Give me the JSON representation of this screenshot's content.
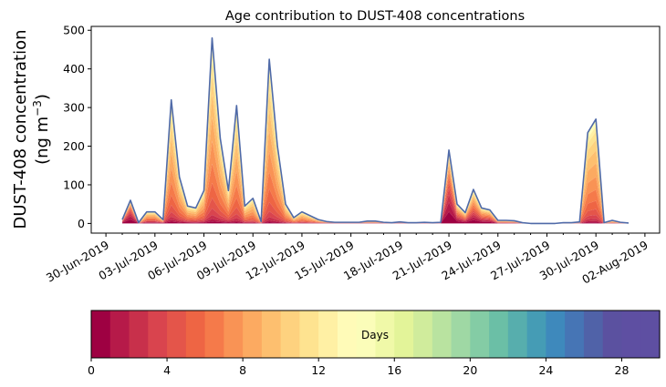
{
  "chart_data": {
    "type": "area",
    "title": "Age contribution to DUST-408 concentrations",
    "ylabel_line1": "DUST-408 concentration",
    "ylabel_line2_prefix": "(ng m",
    "ylabel_line2_sup": "−3",
    "ylabel_line2_suffix": ")",
    "xlabel": "",
    "x_unit": "days since 30-Jun-2019",
    "xlim": [
      -0.9,
      33.9
    ],
    "ylim": [
      -25,
      510
    ],
    "y_ticks": [
      0,
      100,
      200,
      300,
      400,
      500
    ],
    "x_tick_positions": [
      0,
      3,
      6,
      9,
      12,
      15,
      18,
      21,
      24,
      27,
      30,
      33
    ],
    "x_tick_labels": [
      "30-Jun-2019",
      "03-Jul-2019",
      "06-Jul-2019",
      "09-Jul-2019",
      "12-Jul-2019",
      "15-Jul-2019",
      "18-Jul-2019",
      "21-Jul-2019",
      "24-Jul-2019",
      "27-Jul-2019",
      "30-Jul-2019",
      "02-Aug-2019"
    ],
    "time": [
      1,
      1.5,
      2,
      2.5,
      3,
      3.5,
      4,
      4.5,
      5,
      5.5,
      6,
      6.5,
      7,
      7.5,
      8,
      8.5,
      9,
      9.5,
      10,
      10.5,
      11,
      11.5,
      12,
      12.5,
      13,
      13.5,
      14,
      14.5,
      15,
      15.5,
      16,
      16.5,
      17,
      17.5,
      18,
      18.5,
      19,
      19.5,
      20,
      20.5,
      21,
      21.5,
      22,
      22.5,
      23,
      23.5,
      24,
      24.5,
      25,
      25.5,
      26,
      26.5,
      27,
      27.5,
      28,
      28.5,
      29,
      29.5,
      30,
      30.5,
      31,
      31.5,
      32
    ],
    "total": [
      10,
      60,
      2,
      30,
      30,
      10,
      320,
      120,
      45,
      40,
      85,
      480,
      220,
      85,
      305,
      45,
      65,
      5,
      425,
      200,
      50,
      15,
      30,
      20,
      10,
      5,
      3,
      3,
      3,
      3,
      6,
      6,
      3,
      2,
      4,
      2,
      2,
      3,
      2,
      3,
      190,
      50,
      28,
      88,
      40,
      35,
      8,
      8,
      7,
      2,
      0,
      0,
      0,
      0,
      2,
      2,
      4,
      235,
      270,
      2,
      8,
      3,
      1
    ],
    "young_fraction": [
      0.9,
      0.9,
      0.5,
      0.35,
      0.35,
      0.5,
      0.08,
      0.12,
      0.25,
      0.25,
      0.12,
      0.05,
      0.08,
      0.15,
      0.05,
      0.15,
      0.1,
      0.3,
      0.03,
      0.05,
      0.1,
      0.2,
      0.15,
      0.2,
      0.3,
      0.4,
      0.4,
      0.4,
      0.4,
      0.4,
      0.3,
      0.3,
      0.4,
      0.4,
      0.4,
      0.4,
      0.4,
      0.4,
      0.4,
      0.4,
      0.85,
      0.65,
      0.6,
      0.6,
      0.6,
      0.6,
      0.4,
      0.4,
      0.4,
      0.3,
      0.3,
      0.3,
      0.3,
      0.3,
      0.2,
      0.2,
      0.2,
      0.05,
      0.05,
      0.2,
      0.2,
      0.2,
      0.2
    ],
    "series_by_age_days": [
      0,
      1,
      2,
      3,
      4,
      5,
      6,
      7,
      8,
      9,
      10,
      11,
      12,
      13,
      14,
      15,
      16,
      17,
      18,
      19,
      20,
      21,
      22,
      23,
      24,
      25,
      26,
      27,
      28,
      29
    ],
    "colorbar": {
      "label": "Days",
      "vmin": 0,
      "vmax": 30,
      "n_bins": 30,
      "ticks": [
        0,
        4,
        8,
        12,
        16,
        20,
        24,
        28
      ],
      "colors": [
        "#9e0142",
        "#b61a49",
        "#c8304b",
        "#d9444e",
        "#e4554a",
        "#ee6544",
        "#f57a4a",
        "#f99355",
        "#fcaa61",
        "#fdbf6f",
        "#fed27f",
        "#fee390",
        "#fff0a4",
        "#fffbb8",
        "#fbfdb9",
        "#f0f9a8",
        "#e3f499",
        "#d0ec9c",
        "#b9e3a0",
        "#9fd8a4",
        "#84cca5",
        "#6bbfa6",
        "#57aead",
        "#459cb5",
        "#3e89bc",
        "#4675b5",
        "#5062a8",
        "#5b51a0",
        "#5e4fa2",
        "#5e4fa2"
      ]
    },
    "outline_color": "#4f6aa8"
  }
}
